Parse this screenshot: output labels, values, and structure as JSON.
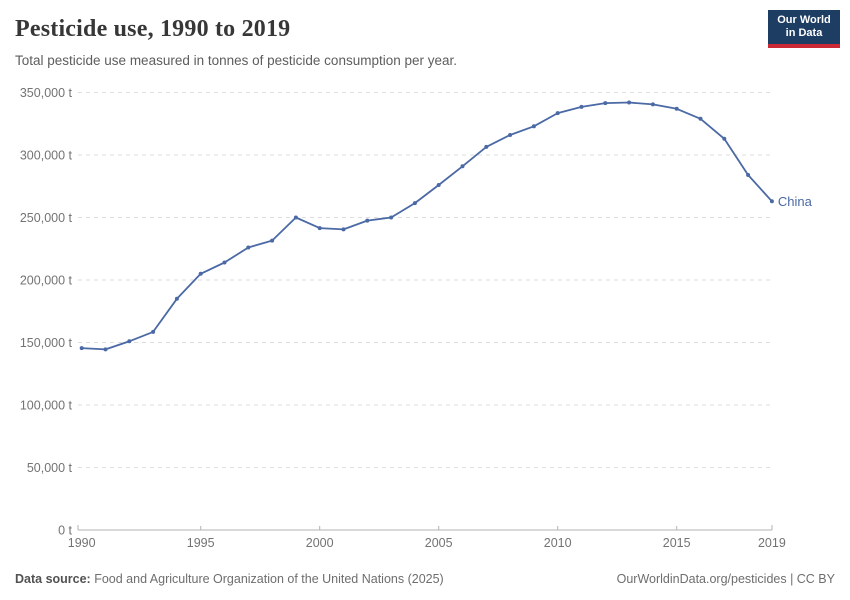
{
  "header": {
    "title": "Pesticide use, 1990 to 2019",
    "subtitle": "Total pesticide use measured in tonnes of pesticide consumption per year.",
    "logo": {
      "line1": "Our World",
      "line2": "in Data",
      "bg_color": "#1d3d63",
      "accent_color": "#cc2936"
    }
  },
  "chart_data": {
    "type": "line",
    "title": "Pesticide use, 1990 to 2019",
    "xlabel": "",
    "ylabel": "",
    "unit": "t",
    "xlim": [
      1990,
      2019
    ],
    "ylim": [
      0,
      350000
    ],
    "grid": "horizontal-dashed",
    "legend": "end-of-line-label",
    "x": [
      1990,
      1991,
      1992,
      1993,
      1994,
      1995,
      1996,
      1997,
      1998,
      1999,
      2000,
      2001,
      2002,
      2003,
      2004,
      2005,
      2006,
      2007,
      2008,
      2009,
      2010,
      2011,
      2012,
      2013,
      2014,
      2015,
      2016,
      2017,
      2018,
      2019
    ],
    "series": [
      {
        "name": "China",
        "color": "#4b69a5",
        "values": [
          145500,
          144500,
          151000,
          158500,
          185000,
          205000,
          214000,
          226000,
          231500,
          250000,
          241500,
          240500,
          247500,
          250000,
          261500,
          276000,
          291000,
          306500,
          316000,
          323000,
          333500,
          338500,
          341500,
          342000,
          340500,
          337000,
          329000,
          313000,
          284000,
          263000
        ]
      }
    ],
    "yticks": [
      {
        "value": 0,
        "label": "0 t"
      },
      {
        "value": 50000,
        "label": "50,000 t"
      },
      {
        "value": 100000,
        "label": "100,000 t"
      },
      {
        "value": 150000,
        "label": "150,000 t"
      },
      {
        "value": 200000,
        "label": "200,000 t"
      },
      {
        "value": 250000,
        "label": "250,000 t"
      },
      {
        "value": 300000,
        "label": "300,000 t"
      },
      {
        "value": 350000,
        "label": "350,000 t"
      }
    ],
    "xticks": [
      {
        "value": 1990,
        "label": "1990"
      },
      {
        "value": 1995,
        "label": "1995"
      },
      {
        "value": 2000,
        "label": "2000"
      },
      {
        "value": 2005,
        "label": "2005"
      },
      {
        "value": 2010,
        "label": "2010"
      },
      {
        "value": 2015,
        "label": "2015"
      },
      {
        "value": 2019,
        "label": "2019"
      }
    ]
  },
  "footer": {
    "datasource_label": "Data source:",
    "datasource_text": " Food and Agriculture Organization of the United Nations (2025)",
    "link_text": "OurWorldinData.org/pesticides | CC BY"
  }
}
